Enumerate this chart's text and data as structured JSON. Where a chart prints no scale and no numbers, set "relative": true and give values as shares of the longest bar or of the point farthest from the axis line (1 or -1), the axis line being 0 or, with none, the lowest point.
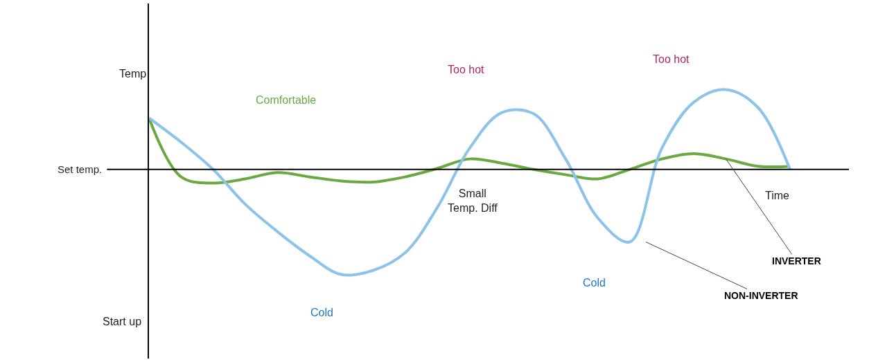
{
  "chart_data": {
    "type": "line",
    "relative": true,
    "xlabel": "Time",
    "ylabel": "Temp",
    "categories": [
      null,
      null,
      null,
      null,
      null,
      null,
      null,
      null,
      null,
      null,
      null,
      null,
      null,
      null,
      null,
      null,
      null,
      null,
      null,
      null,
      null
    ],
    "series": [
      {
        "name": "INVERTER",
        "color": "#6aa842",
        "values": [
          0.49,
          -0.07,
          -0.13,
          -0.09,
          -0.03,
          -0.07,
          -0.11,
          -0.12,
          -0.07,
          0.01,
          0.1,
          0.06,
          0,
          -0.05,
          -0.09,
          0,
          0.1,
          0.15,
          0.1,
          0.03,
          0.03
        ]
      },
      {
        "name": "NON-INVERTER",
        "color": "#8cc3e8",
        "values": [
          0.49,
          0.26,
          0,
          -0.33,
          -0.59,
          -0.82,
          -1.0,
          -0.96,
          -0.79,
          -0.36,
          0.2,
          0.54,
          0.53,
          0.1,
          -0.46,
          -0.69,
          0.2,
          0.64,
          0.76,
          0.59,
          0
        ]
      }
    ],
    "ref_lines": [
      {
        "axis": "y",
        "value": 0,
        "label": "Set temp.",
        "color": "#000000"
      }
    ],
    "annotations": [
      "Comfortable",
      "Too hot",
      "Too hot",
      "Cold",
      "Cold",
      "Small\nTemp. Diff",
      "Start up"
    ],
    "legend": false,
    "marker": "none",
    "line_style": "solid"
  }
}
